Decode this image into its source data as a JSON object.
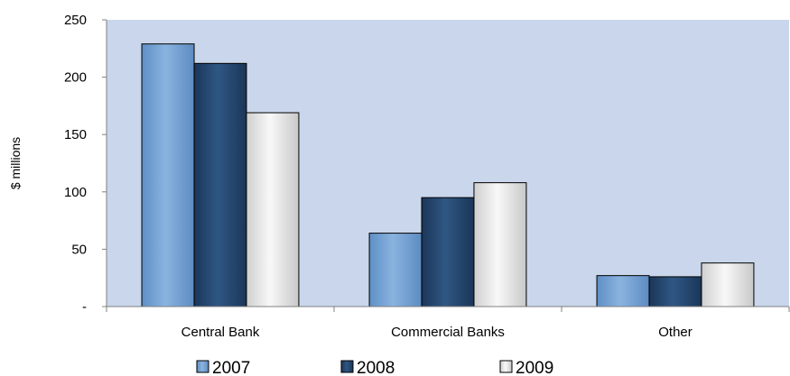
{
  "chart_data": {
    "type": "bar",
    "title": "",
    "xlabel": "",
    "ylabel": "$ millions",
    "ylim": [
      0,
      250
    ],
    "yticks": [
      0,
      50,
      100,
      150,
      200,
      250
    ],
    "ytick_labels": [
      "-",
      "50",
      "100",
      "150",
      "200",
      "250"
    ],
    "categories": [
      "Central Bank",
      "Commercial Banks",
      "Other"
    ],
    "series": [
      {
        "name": "2007",
        "values": [
          229,
          64,
          27
        ],
        "color": "#6f9fd2"
      },
      {
        "name": "2008",
        "values": [
          212,
          95,
          26
        ],
        "color": "#24456c"
      },
      {
        "name": "2009",
        "values": [
          169,
          108,
          38
        ],
        "color": "#e4e4e4"
      }
    ],
    "plot_background": "#c9d6eb",
    "grid": false,
    "legend_position": "bottom"
  }
}
